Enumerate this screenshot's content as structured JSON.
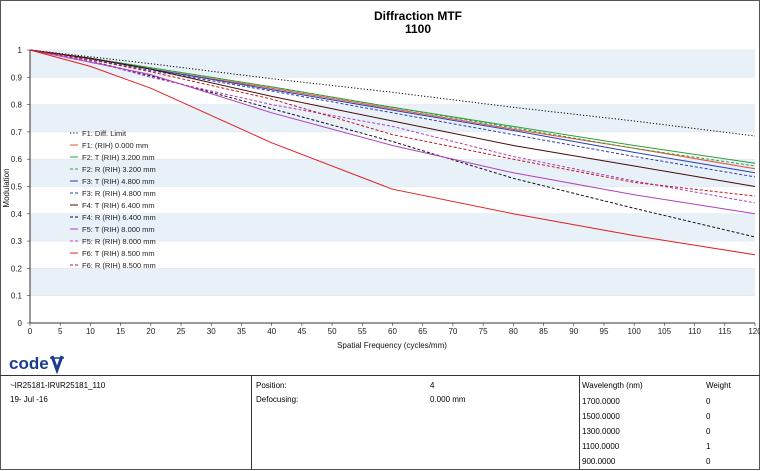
{
  "chart_data": {
    "type": "line",
    "title": "Diffraction MTF",
    "subtitle": "1100",
    "xlabel": "Spatial Frequency (cycles/mm)",
    "ylabel": "Modulation",
    "xlim": [
      0,
      120
    ],
    "ylim": [
      0,
      1
    ],
    "xticks": [
      "0",
      "5",
      "10",
      "15",
      "20",
      "25",
      "30",
      "35",
      "40",
      "45",
      "50",
      "55",
      "60",
      "65",
      "70",
      "75",
      "80",
      "85",
      "90",
      "95",
      "100",
      "105",
      "110",
      "115",
      "120"
    ],
    "yticks": [
      "0",
      "0.1",
      "0.2",
      "0.3",
      "0.4",
      "0.5",
      "0.6",
      "0.7",
      "0.8",
      "0.9",
      "1"
    ],
    "legend_position": "left",
    "series": [
      {
        "name": "F1: Diff. Limit",
        "color": "#000000",
        "dash": "dot",
        "x": [
          0,
          10,
          20,
          40,
          60,
          80,
          100,
          120
        ],
        "y": [
          1,
          0.975,
          0.95,
          0.895,
          0.845,
          0.79,
          0.74,
          0.685
        ]
      },
      {
        "name": "F1: (RIH) 0.000 mm",
        "color": "#e8503a",
        "dash": "solid",
        "x": [
          0,
          10,
          20,
          40,
          60,
          80,
          100,
          120
        ],
        "y": [
          1,
          0.97,
          0.93,
          0.86,
          0.785,
          0.71,
          0.64,
          0.565
        ]
      },
      {
        "name": "F2: T (RIH) 3.200 mm",
        "color": "#2e9e3a",
        "dash": "solid",
        "x": [
          0,
          10,
          20,
          40,
          60,
          80,
          100,
          120
        ],
        "y": [
          1,
          0.97,
          0.935,
          0.865,
          0.79,
          0.72,
          0.65,
          0.585
        ]
      },
      {
        "name": "F2: R (RIH) 3.200 mm",
        "color": "#2e9e3a",
        "dash": "dash",
        "x": [
          0,
          10,
          20,
          40,
          60,
          80,
          100,
          120
        ],
        "y": [
          1,
          0.97,
          0.935,
          0.865,
          0.79,
          0.715,
          0.64,
          0.575
        ]
      },
      {
        "name": "F3: T (RIH) 4.800 mm",
        "color": "#2a3fb0",
        "dash": "solid",
        "x": [
          0,
          10,
          20,
          40,
          60,
          80,
          100,
          120
        ],
        "y": [
          1,
          0.968,
          0.93,
          0.855,
          0.78,
          0.705,
          0.625,
          0.55
        ]
      },
      {
        "name": "F3: R (RIH) 4.800 mm",
        "color": "#2a3fb0",
        "dash": "dash",
        "x": [
          0,
          10,
          20,
          40,
          60,
          80,
          100,
          120
        ],
        "y": [
          1,
          0.965,
          0.925,
          0.85,
          0.77,
          0.69,
          0.61,
          0.535
        ]
      },
      {
        "name": "F4: T (RIH) 6.400 mm",
        "color": "#4a0a0a",
        "dash": "solid",
        "x": [
          0,
          10,
          20,
          40,
          60,
          80,
          100,
          120
        ],
        "y": [
          1,
          0.97,
          0.93,
          0.83,
          0.74,
          0.65,
          0.575,
          0.5
        ]
      },
      {
        "name": "F4: R (RIH) 6.400 mm",
        "color": "#111111",
        "dash": "dash",
        "x": [
          0,
          10,
          20,
          40,
          60,
          80,
          100,
          120
        ],
        "y": [
          1,
          0.96,
          0.905,
          0.785,
          0.665,
          0.53,
          0.42,
          0.315
        ]
      },
      {
        "name": "F5: T (RIH) 8.000 mm",
        "color": "#b040c0",
        "dash": "solid",
        "x": [
          0,
          10,
          20,
          40,
          60,
          80,
          100,
          120
        ],
        "y": [
          1,
          0.955,
          0.91,
          0.77,
          0.65,
          0.55,
          0.47,
          0.4
        ]
      },
      {
        "name": "F5: R (RIH) 8.000 mm",
        "color": "#b040c0",
        "dash": "dash",
        "x": [
          0,
          10,
          20,
          40,
          60,
          80,
          100,
          120
        ],
        "y": [
          1,
          0.96,
          0.9,
          0.8,
          0.72,
          0.61,
          0.52,
          0.44
        ]
      },
      {
        "name": "F6: T (RIH) 8.500 mm",
        "color": "#e02020",
        "dash": "solid",
        "x": [
          0,
          10,
          20,
          40,
          60,
          80,
          100,
          120
        ],
        "y": [
          1,
          0.94,
          0.86,
          0.66,
          0.49,
          0.4,
          0.32,
          0.25
        ]
      },
      {
        "name": "F6: R (RIH) 8.500 mm",
        "color": "#c01818",
        "dash": "dash",
        "x": [
          0,
          10,
          20,
          40,
          60,
          80,
          100,
          120
        ],
        "y": [
          1,
          0.965,
          0.92,
          0.82,
          0.69,
          0.6,
          0.515,
          0.465
        ]
      }
    ]
  },
  "footer": {
    "col1": {
      "line1": "~IR25181-IR\\IR25181_110",
      "line2": "19- Jul -16"
    },
    "col2": {
      "position_label": "Position:",
      "position_value": "4",
      "defocusing_label": "Defocusing:",
      "defocusing_value": "0.000 mm"
    },
    "col3": {
      "wavelength_header": "Wavelength (nm)",
      "weight_header": "Weight",
      "rows": [
        {
          "wavelength": "1700.0000",
          "weight": "0"
        },
        {
          "wavelength": "1500.0000",
          "weight": "0"
        },
        {
          "wavelength": "1300.0000",
          "weight": "0"
        },
        {
          "wavelength": "1100.0000",
          "weight": "1"
        },
        {
          "wavelength": "900.0000",
          "weight": "0"
        }
      ]
    }
  },
  "logo": {
    "text": "code V",
    "color": "#1a3d8f"
  }
}
